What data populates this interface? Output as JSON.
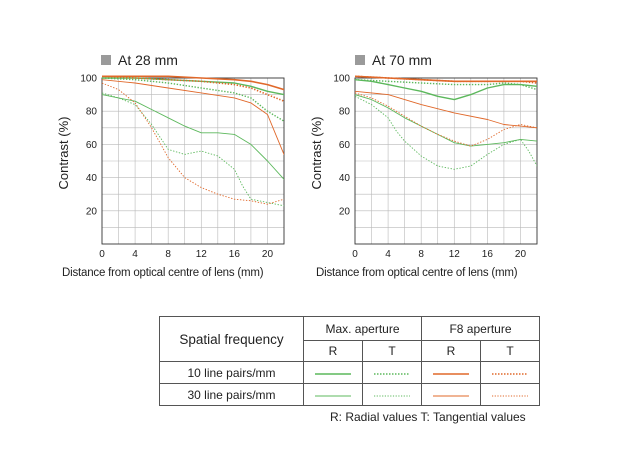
{
  "colors": {
    "green": "#5cb85c",
    "orange": "#e0682a",
    "grid": "#b9b9b9",
    "axis": "#333333"
  },
  "chart_data": [
    {
      "type": "line",
      "title": "At 28 mm",
      "xlabel": "Distance from optical centre of lens (mm)",
      "ylabel": "Contrast (%)",
      "xlim": [
        0,
        22
      ],
      "ylim": [
        0,
        100
      ],
      "xticks": [
        0,
        4,
        8,
        12,
        16,
        20
      ],
      "yticks": [
        20,
        40,
        60,
        80,
        100
      ],
      "grid": true,
      "series": [
        {
          "line_pairs": 10,
          "aperture": "max",
          "direction": "R",
          "color": "green",
          "dash": "solid",
          "x": [
            0,
            4,
            8,
            12,
            16,
            18,
            20,
            22
          ],
          "y": [
            100,
            100,
            99,
            98,
            97,
            95,
            92,
            90
          ]
        },
        {
          "line_pairs": 10,
          "aperture": "max",
          "direction": "T",
          "color": "green",
          "dash": "dotted",
          "x": [
            0,
            4,
            8,
            12,
            16,
            18,
            20,
            22
          ],
          "y": [
            100,
            99,
            97,
            94,
            91,
            88,
            80,
            74
          ]
        },
        {
          "line_pairs": 10,
          "aperture": "F8",
          "direction": "R",
          "color": "orange",
          "dash": "solid",
          "x": [
            0,
            4,
            8,
            12,
            16,
            18,
            20,
            22
          ],
          "y": [
            101,
            101,
            101,
            100,
            99,
            98,
            96,
            93
          ]
        },
        {
          "line_pairs": 10,
          "aperture": "F8",
          "direction": "T",
          "color": "orange",
          "dash": "dotted",
          "x": [
            0,
            4,
            8,
            12,
            16,
            18,
            20,
            22
          ],
          "y": [
            101,
            100,
            99,
            98,
            96,
            94,
            90,
            86
          ]
        },
        {
          "line_pairs": 30,
          "aperture": "max",
          "direction": "R",
          "color": "green",
          "dash": "solid",
          "x": [
            0,
            2,
            4,
            6,
            8,
            10,
            12,
            14,
            16,
            18,
            20,
            22
          ],
          "y": [
            90,
            88,
            86,
            81,
            76,
            71,
            67,
            67,
            66,
            60,
            50,
            39
          ]
        },
        {
          "line_pairs": 30,
          "aperture": "max",
          "direction": "T",
          "color": "green",
          "dash": "dotted",
          "x": [
            0,
            2,
            4,
            6,
            8,
            10,
            12,
            14,
            16,
            17,
            18,
            20,
            22
          ],
          "y": [
            91,
            88,
            84,
            72,
            57,
            54,
            56,
            53,
            45,
            35,
            27,
            25,
            23
          ]
        },
        {
          "line_pairs": 30,
          "aperture": "F8",
          "direction": "R",
          "color": "orange",
          "dash": "solid",
          "x": [
            0,
            4,
            8,
            12,
            16,
            18,
            20,
            21,
            22
          ],
          "y": [
            99,
            97,
            94,
            91,
            88,
            85,
            78,
            66,
            54
          ]
        },
        {
          "line_pairs": 30,
          "aperture": "F8",
          "direction": "T",
          "color": "orange",
          "dash": "dotted",
          "x": [
            0,
            2,
            4,
            6,
            8,
            10,
            12,
            14,
            16,
            18,
            20,
            22
          ],
          "y": [
            97,
            93,
            85,
            70,
            52,
            40,
            34,
            30,
            27,
            26,
            24,
            27
          ]
        }
      ]
    },
    {
      "type": "line",
      "title": "At 70 mm",
      "xlabel": "Distance from optical centre of lens (mm)",
      "ylabel": "Contrast (%)",
      "xlim": [
        0,
        22
      ],
      "ylim": [
        0,
        100
      ],
      "xticks": [
        0,
        4,
        8,
        12,
        16,
        20
      ],
      "yticks": [
        20,
        40,
        60,
        80,
        100
      ],
      "grid": true,
      "series": [
        {
          "line_pairs": 10,
          "aperture": "max",
          "direction": "R",
          "color": "green",
          "dash": "solid",
          "x": [
            0,
            2,
            4,
            6,
            8,
            10,
            12,
            14,
            16,
            18,
            20,
            22
          ],
          "y": [
            99,
            98,
            96,
            94,
            92,
            89,
            87,
            90,
            94,
            96,
            96,
            95
          ]
        },
        {
          "line_pairs": 10,
          "aperture": "max",
          "direction": "T",
          "color": "green",
          "dash": "dotted",
          "x": [
            0,
            4,
            8,
            12,
            14,
            16,
            18,
            20,
            22
          ],
          "y": [
            99,
            98,
            97,
            96,
            96,
            96,
            97,
            96,
            93
          ]
        },
        {
          "line_pairs": 10,
          "aperture": "F8",
          "direction": "R",
          "color": "orange",
          "dash": "solid",
          "x": [
            0,
            4,
            8,
            12,
            16,
            20,
            22
          ],
          "y": [
            101,
            100,
            99,
            98,
            98,
            98,
            98
          ]
        },
        {
          "line_pairs": 10,
          "aperture": "F8",
          "direction": "T",
          "color": "orange",
          "dash": "dotted",
          "x": [
            0,
            4,
            8,
            12,
            16,
            20,
            22
          ],
          "y": [
            101,
            100,
            99,
            98,
            98,
            98,
            97
          ]
        },
        {
          "line_pairs": 30,
          "aperture": "max",
          "direction": "R",
          "color": "green",
          "dash": "solid",
          "x": [
            0,
            2,
            4,
            6,
            8,
            10,
            12,
            14,
            16,
            18,
            20,
            22
          ],
          "y": [
            90,
            87,
            82,
            76,
            71,
            66,
            61,
            59,
            60,
            61,
            63,
            62
          ]
        },
        {
          "line_pairs": 30,
          "aperture": "max",
          "direction": "T",
          "color": "green",
          "dash": "dotted",
          "x": [
            0,
            2,
            4,
            5,
            6,
            8,
            10,
            12,
            14,
            16,
            18,
            20,
            21,
            22
          ],
          "y": [
            89,
            84,
            76,
            68,
            62,
            53,
            47,
            45,
            47,
            54,
            60,
            63,
            56,
            47
          ]
        },
        {
          "line_pairs": 30,
          "aperture": "F8",
          "direction": "R",
          "color": "orange",
          "dash": "solid",
          "x": [
            0,
            4,
            8,
            12,
            16,
            18,
            20,
            22
          ],
          "y": [
            92,
            90,
            84,
            79,
            75,
            72,
            71,
            70
          ]
        },
        {
          "line_pairs": 30,
          "aperture": "F8",
          "direction": "T",
          "color": "orange",
          "dash": "dotted",
          "x": [
            0,
            2,
            4,
            6,
            8,
            10,
            12,
            14,
            16,
            18,
            20,
            22
          ],
          "y": [
            91,
            88,
            83,
            77,
            71,
            66,
            62,
            59,
            63,
            69,
            72,
            70
          ]
        }
      ]
    }
  ],
  "legend": {
    "spatial_frequency": "Spatial frequency",
    "max_aperture": "Max. aperture",
    "f8_aperture": "F8 aperture",
    "radial_short": "R",
    "tangential_short": "T",
    "row_10": "10 line pairs/mm",
    "row_30": "30 line pairs/mm"
  },
  "footnote": "R: Radial values  T: Tangential values"
}
